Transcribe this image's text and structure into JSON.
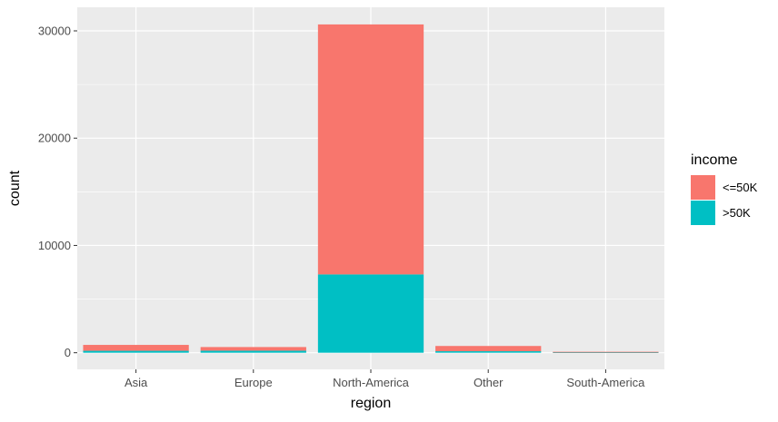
{
  "chart_data": {
    "type": "bar",
    "stacked": true,
    "title": "",
    "xlabel": "region",
    "ylabel": "count",
    "categories": [
      "Asia",
      "Europe",
      "North-America",
      "Other",
      "South-America"
    ],
    "series": [
      {
        "name": "<=50K",
        "color": "#F8766D",
        "values": [
          550,
          340,
          23300,
          490,
          75
        ]
      },
      {
        "name": ">50K",
        "color": "#00BFC4",
        "values": [
          180,
          190,
          7300,
          140,
          15
        ]
      }
    ],
    "ylim": [
      -1550,
      32200
    ],
    "yticks": [
      0,
      10000,
      20000,
      30000
    ],
    "ytick_labels": [
      "0",
      "10000",
      "20000",
      "30000"
    ],
    "grid": true,
    "legend": {
      "title": "income",
      "position": "right"
    },
    "panel_background": "#EBEBEB",
    "grid_color": "#FFFFFF"
  }
}
